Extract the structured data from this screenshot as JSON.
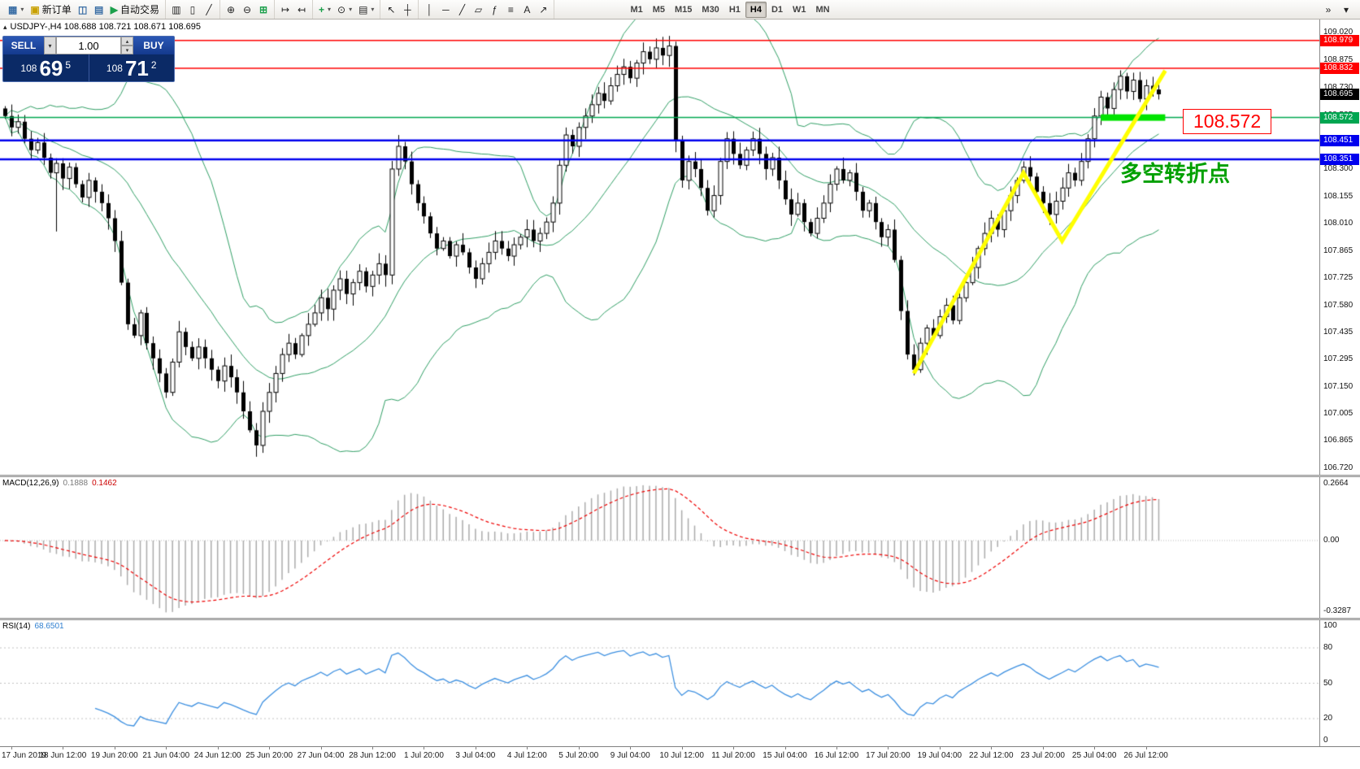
{
  "toolbar": {
    "groups": [
      {
        "items": [
          {
            "name": "new-chart-button",
            "glyph": "▦",
            "color": "#3a6ea5",
            "dropdown": true
          },
          {
            "name": "new-order-button",
            "glyph": "▣",
            "color": "#c8a000",
            "label": "新订单"
          },
          {
            "name": "profiles-icon",
            "glyph": "◫",
            "color": "#3a6ea5"
          },
          {
            "name": "market-watch-icon",
            "glyph": "▤",
            "color": "#3a6ea5"
          },
          {
            "name": "autotrading-button",
            "glyph": "▶",
            "color": "#1ca04c",
            "label": "自动交易"
          }
        ]
      },
      {
        "items": [
          {
            "name": "bar-chart-type-icon",
            "glyph": "▥"
          },
          {
            "name": "candlestick-chart-type-icon",
            "glyph": "▯"
          },
          {
            "name": "line-chart-type-icon",
            "glyph": "╱"
          }
        ]
      },
      {
        "items": [
          {
            "name": "zoom-in-icon",
            "glyph": "⊕"
          },
          {
            "name": "zoom-out-icon",
            "glyph": "⊖"
          },
          {
            "name": "tile-windows-icon",
            "glyph": "⊞",
            "color": "#1ca04c"
          }
        ]
      },
      {
        "items": [
          {
            "name": "auto-scroll-icon",
            "glyph": "↦"
          },
          {
            "name": "chart-shift-icon",
            "glyph": "↤"
          }
        ]
      },
      {
        "items": [
          {
            "name": "indicators-icon",
            "glyph": "+",
            "color": "#1ca04c",
            "dropdown": true
          },
          {
            "name": "periods-icon",
            "glyph": "⊙",
            "dropdown": true
          },
          {
            "name": "templates-icon",
            "glyph": "▤",
            "dropdown": true
          }
        ]
      },
      {
        "items": [
          {
            "name": "cursor-icon",
            "glyph": "↖"
          },
          {
            "name": "crosshair-icon",
            "glyph": "┼"
          }
        ]
      },
      {
        "items": [
          {
            "name": "vertical-line-icon",
            "glyph": "│"
          },
          {
            "name": "horizontal-line-icon",
            "glyph": "─"
          },
          {
            "name": "trendline-icon",
            "glyph": "╱"
          },
          {
            "name": "equidistant-channel-icon",
            "glyph": "▱"
          },
          {
            "name": "fibonacci-icon",
            "glyph": "ƒ"
          },
          {
            "name": "andrews-pitchfork-icon",
            "glyph": "≡"
          },
          {
            "name": "text-label-icon",
            "glyph": "A"
          },
          {
            "name": "arrow-object-icon",
            "glyph": "↗"
          }
        ]
      }
    ],
    "timeframes": [
      {
        "label": "M1"
      },
      {
        "label": "M5"
      },
      {
        "label": "M15"
      },
      {
        "label": "M30"
      },
      {
        "label": "H1"
      },
      {
        "label": "H4",
        "active": true
      },
      {
        "label": "D1"
      },
      {
        "label": "W1"
      },
      {
        "label": "MN"
      }
    ],
    "right_buttons": [
      {
        "name": "toolbar-overflow-button",
        "glyph": "»"
      },
      {
        "name": "toolbar-customize-button",
        "glyph": "▾"
      }
    ]
  },
  "chart": {
    "icons": {
      "collapse": "▴",
      "dropdown_arrow": "▾",
      "spin_up": "▴",
      "spin_down": "▾"
    },
    "header_title": "USDJPY-,H4 108.688 108.721 108.671 108.695",
    "trade_panel": {
      "sell_label": "SELL",
      "buy_label": "BUY",
      "volume": "1.00",
      "sell_price_prefix": "108",
      "sell_price_big": "69",
      "sell_price_sup": "5",
      "buy_price_prefix": "108",
      "buy_price_big": "71",
      "buy_price_sup": "2"
    },
    "annotations": {
      "support_callout": "108.572",
      "turning_point_text": "多空转折点"
    }
  },
  "macd_panel": {
    "name": "MACD(12,26,9)",
    "value_main": "0.1888",
    "value_signal": "0.1462"
  },
  "rsi_panel": {
    "name": "RSI(14)",
    "value": "68.6501"
  },
  "chart_data": {
    "type": "candlestick",
    "symbol": "USDJPY",
    "timeframe": "H4",
    "y_range": [
      106.685,
      109.09
    ],
    "first_open": 108.62,
    "closes": [
      108.58,
      108.52,
      108.55,
      108.46,
      108.4,
      108.44,
      108.36,
      108.28,
      108.33,
      108.25,
      108.31,
      108.22,
      108.15,
      108.24,
      108.18,
      108.12,
      108.04,
      107.92,
      107.7,
      107.48,
      107.42,
      107.54,
      107.38,
      107.3,
      107.22,
      107.12,
      107.28,
      107.44,
      107.36,
      107.3,
      107.36,
      107.3,
      107.24,
      107.18,
      107.26,
      107.2,
      107.12,
      107.02,
      106.92,
      106.84,
      107.02,
      107.12,
      107.22,
      107.32,
      107.38,
      107.32,
      107.42,
      107.48,
      107.54,
      107.62,
      107.56,
      107.66,
      107.72,
      107.64,
      107.7,
      107.76,
      107.68,
      107.74,
      107.8,
      107.74,
      108.3,
      108.42,
      108.34,
      108.22,
      108.12,
      108.05,
      107.96,
      107.88,
      107.92,
      107.84,
      107.9,
      107.86,
      107.78,
      107.72,
      107.8,
      107.86,
      107.92,
      107.88,
      107.84,
      107.9,
      107.94,
      107.98,
      107.92,
      107.96,
      108.02,
      108.12,
      108.32,
      108.48,
      108.42,
      108.52,
      108.58,
      108.64,
      108.7,
      108.66,
      108.74,
      108.8,
      108.84,
      108.78,
      108.86,
      108.92,
      108.88,
      108.94,
      108.9,
      108.95,
      108.45,
      108.24,
      108.34,
      108.3,
      108.2,
      108.08,
      108.16,
      108.34,
      108.46,
      108.38,
      108.32,
      108.4,
      108.46,
      108.38,
      108.3,
      108.36,
      108.24,
      108.14,
      108.06,
      108.12,
      108.02,
      107.96,
      108.04,
      108.12,
      108.22,
      108.3,
      108.24,
      108.28,
      108.18,
      108.08,
      108.12,
      108.02,
      107.94,
      107.98,
      107.82,
      107.55,
      107.32,
      107.24,
      107.38,
      107.46,
      107.42,
      107.52,
      107.58,
      107.5,
      107.62,
      107.7,
      107.78,
      107.88,
      107.96,
      108.04,
      107.98,
      108.08,
      108.16,
      108.24,
      108.31,
      108.26,
      108.18,
      108.12,
      108.06,
      108.13,
      108.2,
      108.28,
      108.24,
      108.34,
      108.46,
      108.58,
      108.68,
      108.62,
      108.72,
      108.79,
      108.71,
      108.77,
      108.67,
      108.74,
      108.72,
      108.695
    ],
    "wick_overrides": {
      "8": {
        "low": 107.97
      },
      "39": {
        "low": 106.78
      },
      "101": {
        "high": 108.99
      },
      "141": {
        "low": 107.21
      }
    },
    "indicators": {
      "bollinger": {
        "period": 20,
        "deviation": 2,
        "color": "#2f9e64"
      },
      "macd": {
        "fast": 12,
        "slow": 26,
        "signal": 9,
        "range": [
          -0.3287,
          0.2664
        ],
        "histogram_color": "#ababab",
        "signal_color": "#ee0000"
      },
      "rsi": {
        "period": 14,
        "levels": [
          80,
          50,
          20
        ],
        "color": "#3c8fe0"
      }
    },
    "hlines": [
      {
        "price": 108.979,
        "color": "#ff0000",
        "width": 1.5,
        "label": "108.979"
      },
      {
        "price": 108.832,
        "color": "#ff0000",
        "width": 1.5,
        "label": "108.832"
      },
      {
        "price": 108.572,
        "color": "#00a651",
        "width": 1.5,
        "label": "108.572"
      },
      {
        "price": 108.451,
        "color": "#0000ee",
        "width": 2.5,
        "label": "108.451"
      },
      {
        "price": 108.351,
        "color": "#0000ee",
        "width": 2.5,
        "label": "108.351"
      }
    ],
    "current_price": {
      "price": 108.695,
      "label": "108.695",
      "badge_color": "#000000"
    },
    "trend_polyline": {
      "color": "#ffff00",
      "width": 5,
      "points": [
        [
          141,
          107.22
        ],
        [
          158,
          108.28
        ],
        [
          164,
          107.92
        ],
        [
          180,
          108.82
        ]
      ]
    },
    "support_bar": {
      "color": "#00e400",
      "from": 170,
      "to": 180,
      "price": 108.572,
      "height": 8
    },
    "price_axis_labels": [
      "109.020",
      "108.875",
      "108.730",
      "108.585",
      "108.440",
      "108.300",
      "108.155",
      "108.010",
      "107.865",
      "107.725",
      "107.580",
      "107.435",
      "107.295",
      "107.150",
      "107.005",
      "106.865",
      "106.720"
    ],
    "macd_axis_labels": [
      "0.2664",
      "0.00",
      "-0.3287"
    ],
    "rsi_axis_labels": [
      "100",
      "80",
      "50",
      "20",
      "0"
    ],
    "time_labels": [
      {
        "i": 1,
        "t": "17 Jun 2019"
      },
      {
        "i": 9,
        "t": "18 Jun 12:00"
      },
      {
        "i": 17,
        "t": "19 Jun 20:00"
      },
      {
        "i": 25,
        "t": "21 Jun 04:00"
      },
      {
        "i": 33,
        "t": "24 Jun 12:00"
      },
      {
        "i": 41,
        "t": "25 Jun 20:00"
      },
      {
        "i": 49,
        "t": "27 Jun 04:00"
      },
      {
        "i": 57,
        "t": "28 Jun 12:00"
      },
      {
        "i": 65,
        "t": "1 Jul 20:00"
      },
      {
        "i": 73,
        "t": "3 Jul 04:00"
      },
      {
        "i": 81,
        "t": "4 Jul 12:00"
      },
      {
        "i": 89,
        "t": "5 Jul 20:00"
      },
      {
        "i": 97,
        "t": "9 Jul 04:00"
      },
      {
        "i": 105,
        "t": "10 Jul 12:00"
      },
      {
        "i": 113,
        "t": "11 Jul 20:00"
      },
      {
        "i": 121,
        "t": "15 Jul 04:00"
      },
      {
        "i": 129,
        "t": "16 Jul 12:00"
      },
      {
        "i": 137,
        "t": "17 Jul 20:00"
      },
      {
        "i": 145,
        "t": "19 Jul 04:00"
      },
      {
        "i": 153,
        "t": "22 Jul 12:00"
      },
      {
        "i": 161,
        "t": "23 Jul 20:00"
      },
      {
        "i": 169,
        "t": "25 Jul 04:00"
      },
      {
        "i": 177,
        "t": "26 Jul 12:00"
      }
    ]
  }
}
